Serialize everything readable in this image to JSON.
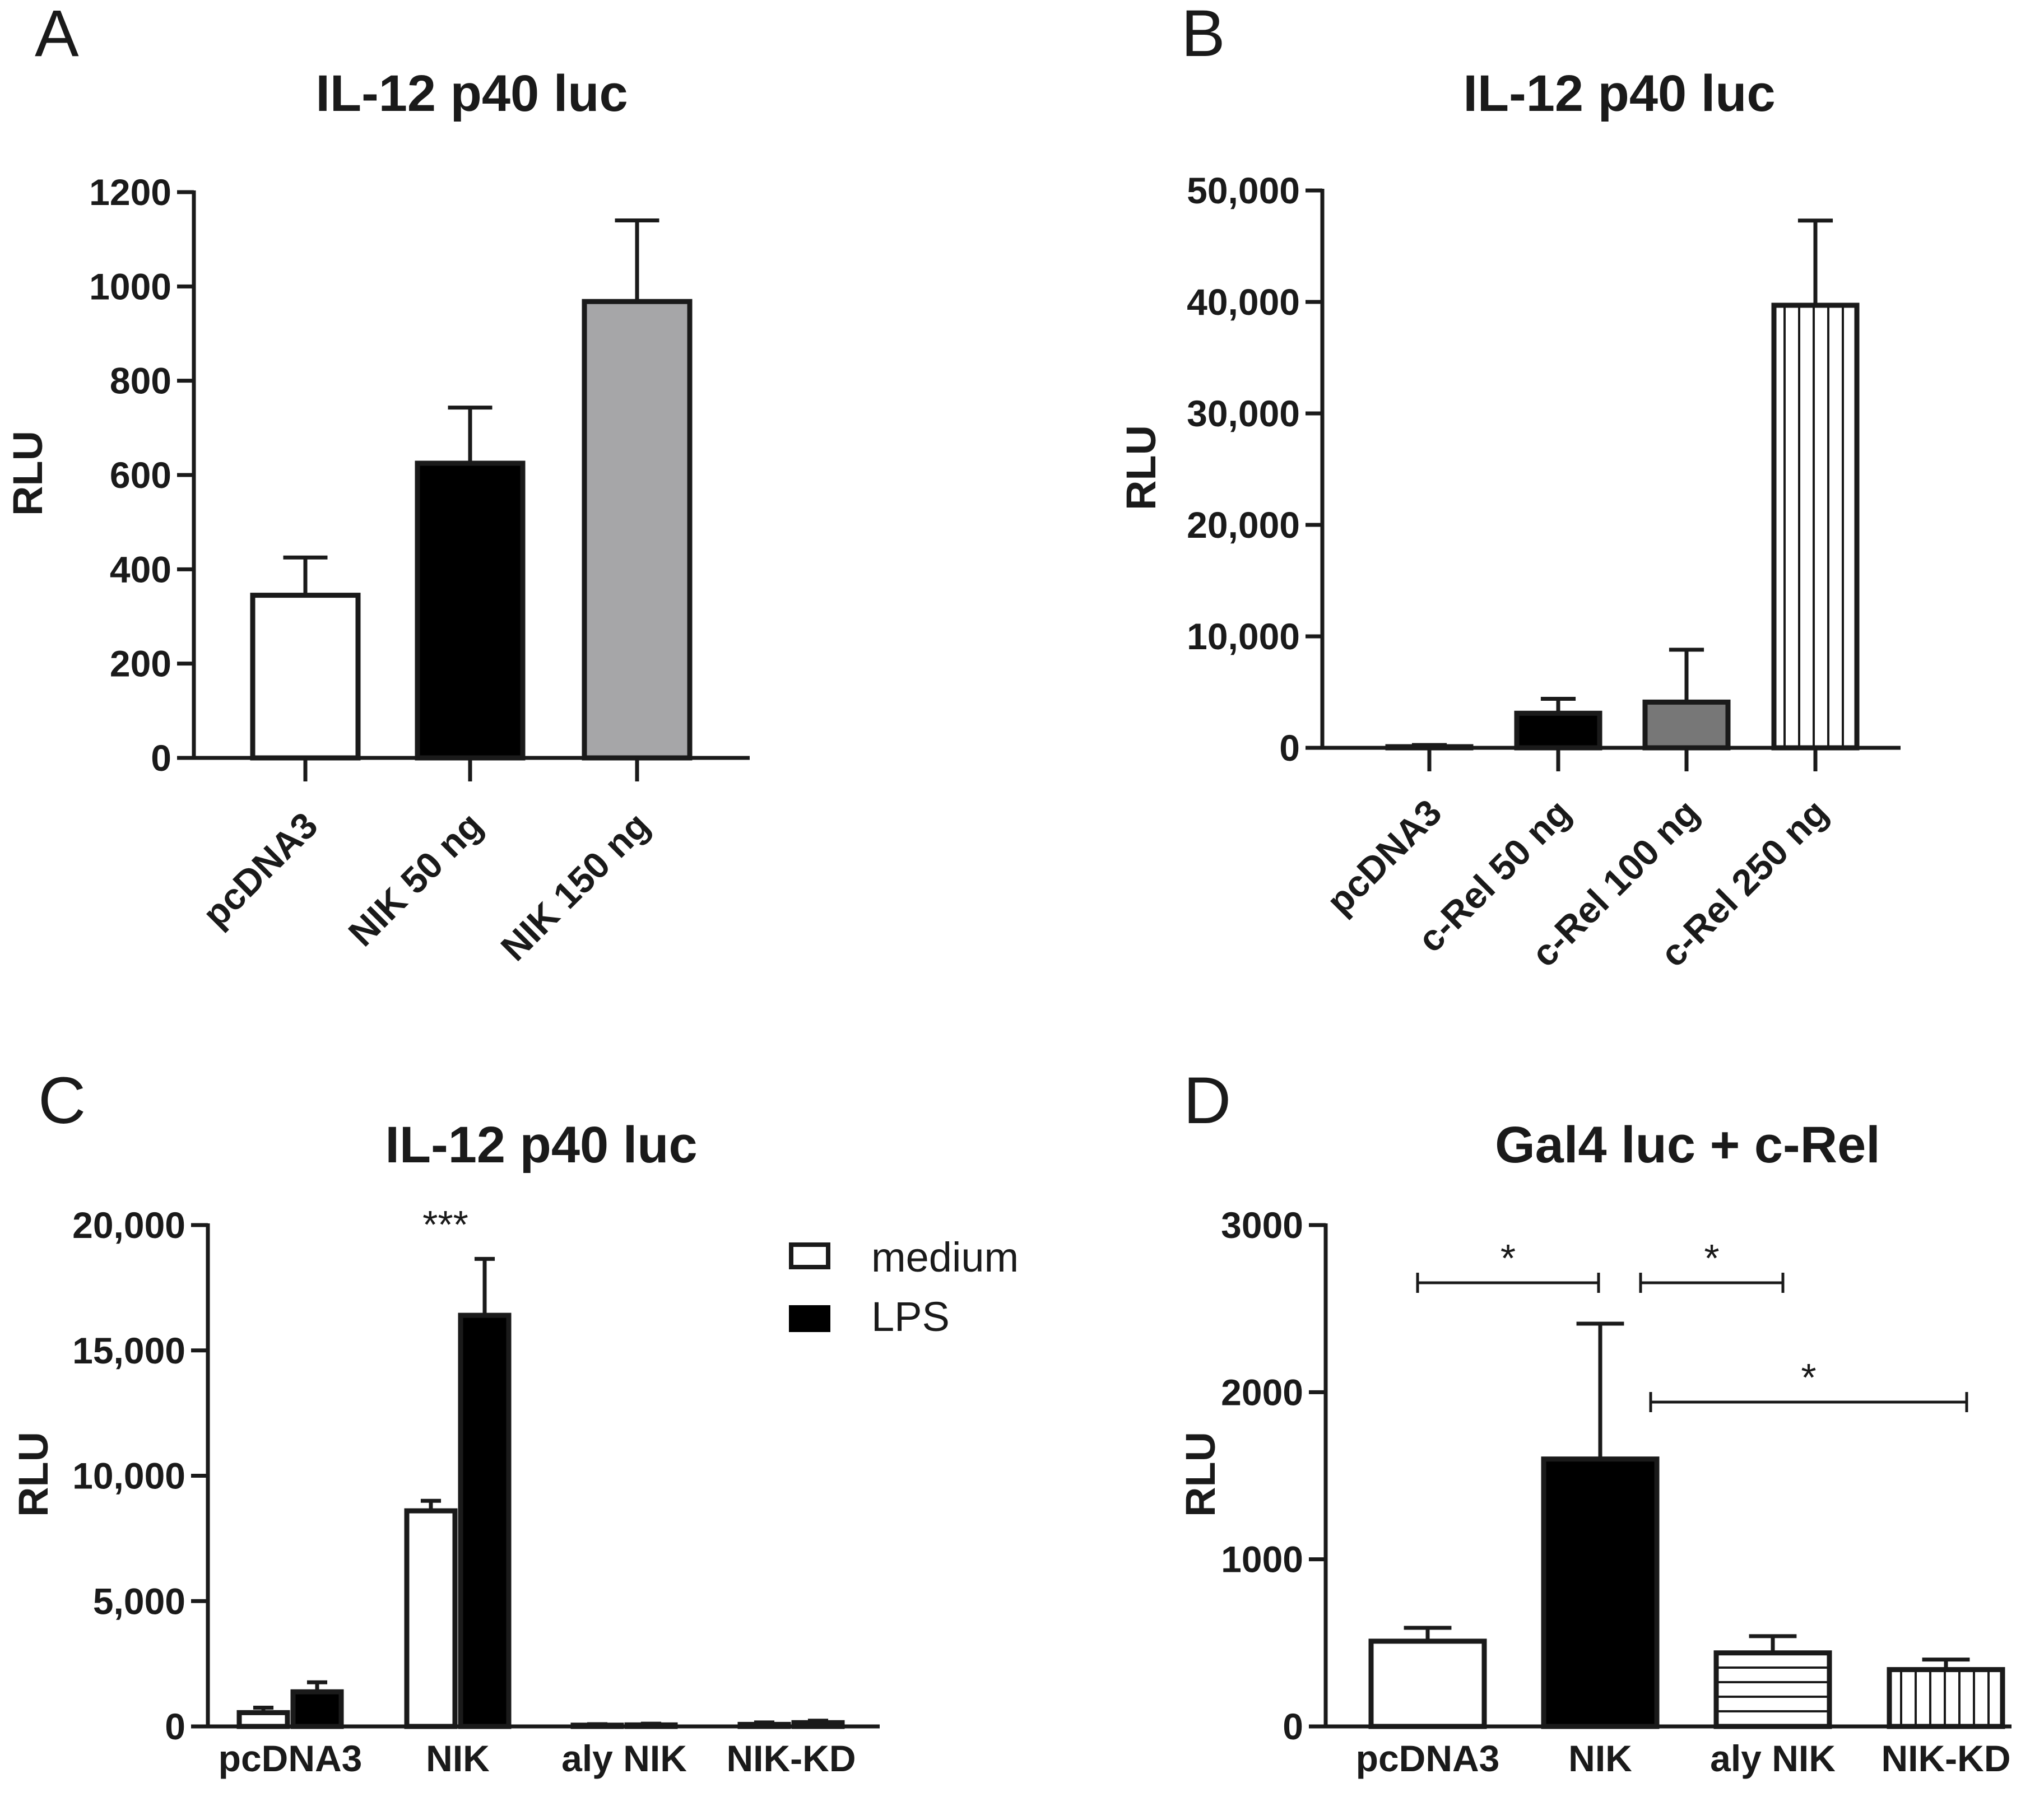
{
  "colors": {
    "white": "#ffffff",
    "black": "#000000",
    "gray_light": "#a6a6a8",
    "gray_dark": "#777777",
    "stroke": "#1a1a1a"
  },
  "chart_data": [
    {
      "panel": "A",
      "type": "bar",
      "title": "IL-12 p40 luc",
      "ylabel": "RLU",
      "xlabel": "",
      "ylim": [
        0,
        1200
      ],
      "yticks": [
        0,
        200,
        400,
        600,
        800,
        1000,
        1200
      ],
      "ytick_labels": [
        "0",
        "200",
        "400",
        "600",
        "800",
        "1000",
        "1200"
      ],
      "categories": [
        "pcDNA3",
        "NIK 50 ng",
        "NIK 150 ng"
      ],
      "values": [
        345,
        625,
        968
      ],
      "errors": [
        80,
        118,
        172
      ],
      "fills": [
        "white",
        "black",
        "gray_light"
      ],
      "rotated_labels": true
    },
    {
      "panel": "B",
      "type": "bar",
      "title": "IL-12 p40 luc",
      "ylabel": "RLU",
      "xlabel": "",
      "ylim": [
        0,
        50000
      ],
      "yticks": [
        0,
        10000,
        20000,
        30000,
        40000,
        50000
      ],
      "ytick_labels": [
        "0",
        "10,000",
        "20,000",
        "30,000",
        "40,000",
        "50,000"
      ],
      "categories": [
        "pcDNA3",
        "c-Rel 50 ng",
        "c-Rel 100 ng",
        "c-Rel 250 ng"
      ],
      "values": [
        100,
        3100,
        4100,
        39700
      ],
      "errors": [
        150,
        1300,
        4700,
        7600
      ],
      "fills": [
        "white",
        "black",
        "gray_dark",
        "vlines"
      ],
      "rotated_labels": true
    },
    {
      "panel": "C",
      "type": "bar",
      "title": "IL-12 p40 luc",
      "ylabel": "RLU",
      "xlabel": "",
      "ylim": [
        0,
        20000
      ],
      "yticks": [
        0,
        5000,
        10000,
        15000,
        20000
      ],
      "ytick_labels": [
        "0",
        "5,000",
        "10,000",
        "15,000",
        "20,000"
      ],
      "categories": [
        "pcDNA3",
        "NIK",
        "aly NIK",
        "NIK-KD"
      ],
      "series": [
        {
          "name": "medium",
          "fill": "white",
          "values": [
            550,
            8600,
            50,
            80
          ],
          "errors": [
            200,
            400,
            40,
            80
          ]
        },
        {
          "name": "LPS",
          "fill": "black",
          "values": [
            1380,
            16400,
            60,
            150
          ],
          "errors": [
            380,
            2250,
            50,
            80
          ]
        }
      ],
      "legend": [
        "medium",
        "LPS"
      ],
      "legend_position": "top-right",
      "annotations": [
        {
          "text": "***",
          "category": "NIK"
        }
      ],
      "rotated_labels": false
    },
    {
      "panel": "D",
      "type": "bar",
      "title": "Gal4 luc + c-Rel",
      "ylabel": "RLU",
      "xlabel": "",
      "ylim": [
        0,
        3000
      ],
      "yticks": [
        0,
        1000,
        2000,
        3000
      ],
      "ytick_labels": [
        "0",
        "1000",
        "2000",
        "3000"
      ],
      "categories": [
        "pcDNA3",
        "NIK",
        "aly NIK",
        "NIK-KD"
      ],
      "values": [
        510,
        1600,
        440,
        340
      ],
      "errors": [
        80,
        810,
        100,
        60
      ],
      "fills": [
        "white",
        "black",
        "hlines",
        "vlines"
      ],
      "significance": [
        {
          "text": "*",
          "from": "pcDNA3",
          "to": "NIK"
        },
        {
          "text": "*",
          "from": "NIK",
          "to": "aly NIK"
        },
        {
          "text": "*",
          "from": "NIK",
          "to": "NIK-KD"
        }
      ],
      "rotated_labels": false
    }
  ]
}
